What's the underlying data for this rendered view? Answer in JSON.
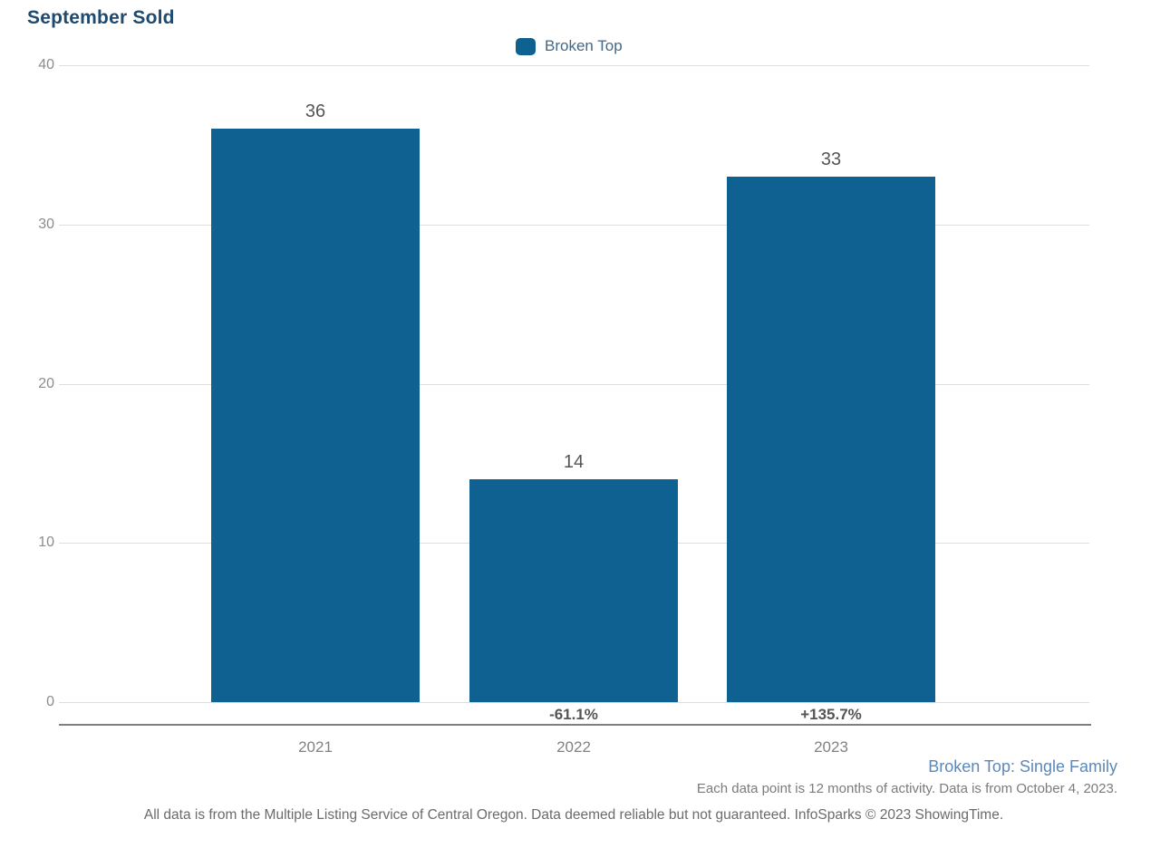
{
  "header": {
    "title": "September Sold"
  },
  "legend": {
    "label": "Broken Top",
    "swatch_color": "#0f6191"
  },
  "chart_data": {
    "type": "bar",
    "title": "September Sold",
    "categories": [
      "2021",
      "2022",
      "2023"
    ],
    "series": [
      {
        "name": "Broken Top",
        "values": [
          36,
          14,
          33
        ],
        "color": "#0f6191"
      }
    ],
    "bar_value_labels": [
      "36",
      "14",
      "33"
    ],
    "change_labels": [
      "",
      "-61.1%",
      "+135.7%"
    ],
    "xlabel": "",
    "ylabel": "",
    "ylim": [
      0,
      40
    ],
    "yticks": [
      0,
      10,
      20,
      30,
      40
    ],
    "ytick_labels": [
      "0",
      "10",
      "20",
      "30",
      "40"
    ],
    "grid": true,
    "legend_position": "top-center"
  },
  "footer": {
    "series_note": "Broken Top: Single Family",
    "data_note": "Each data point is 12 months of activity. Data is from October 4, 2023.",
    "disclaimer": "All data is from the Multiple Listing Service of Central Oregon. Data deemed reliable but not guaranteed. InfoSparks © 2023 ShowingTime."
  }
}
